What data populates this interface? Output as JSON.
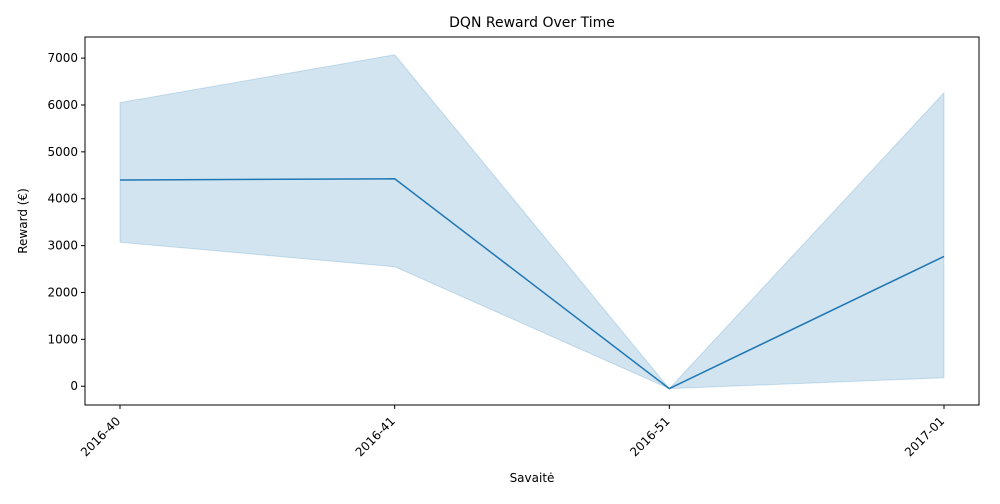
{
  "chart_data": {
    "type": "line",
    "title": "DQN Reward Over Time",
    "xlabel": "Savaitė",
    "ylabel": "Reward (€)",
    "categories": [
      "2016-40",
      "2016-41",
      "2016-51",
      "2017-01"
    ],
    "ylim": [
      -400,
      7450
    ],
    "yticks": [
      0,
      1000,
      2000,
      3000,
      4000,
      5000,
      6000,
      7000
    ],
    "grid": false,
    "series": [
      {
        "values": [
          4400,
          4425,
          -50,
          2770
        ],
        "band_lower": [
          3070,
          2550,
          -50,
          180
        ],
        "band_upper": [
          6050,
          7070,
          -50,
          6260
        ],
        "color": "#1f77b4",
        "band_color": "#1f77b4",
        "band_opacity": 0.2
      }
    ]
  }
}
